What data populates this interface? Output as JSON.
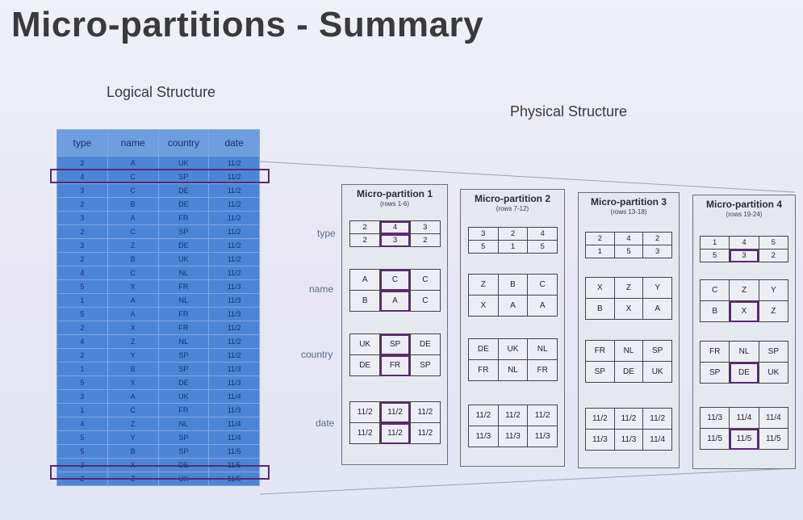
{
  "title": "Micro-partitions - Summary",
  "logical_label": "Logical Structure",
  "physical_label": "Physical Structure",
  "logical_table": {
    "headers": [
      "type",
      "name",
      "country",
      "date"
    ],
    "rows": [
      [
        "2",
        "A",
        "UK",
        "11/2"
      ],
      [
        "4",
        "C",
        "SP",
        "11/2"
      ],
      [
        "3",
        "C",
        "DE",
        "11/2"
      ],
      [
        "2",
        "B",
        "DE",
        "11/2"
      ],
      [
        "3",
        "A",
        "FR",
        "11/2"
      ],
      [
        "2",
        "C",
        "SP",
        "11/2"
      ],
      [
        "3",
        "Z",
        "DE",
        "11/2"
      ],
      [
        "2",
        "B",
        "UK",
        "11/2"
      ],
      [
        "4",
        "C",
        "NL",
        "11/2"
      ],
      [
        "5",
        "X",
        "FR",
        "11/3"
      ],
      [
        "1",
        "A",
        "NL",
        "11/3"
      ],
      [
        "5",
        "A",
        "FR",
        "11/3"
      ],
      [
        "2",
        "X",
        "FR",
        "11/2"
      ],
      [
        "4",
        "Z",
        "NL",
        "11/2"
      ],
      [
        "2",
        "Y",
        "SP",
        "11/2"
      ],
      [
        "1",
        "B",
        "SP",
        "11/3"
      ],
      [
        "5",
        "X",
        "DE",
        "11/3"
      ],
      [
        "3",
        "A",
        "UK",
        "11/4"
      ],
      [
        "1",
        "C",
        "FR",
        "11/3"
      ],
      [
        "4",
        "Z",
        "NL",
        "11/4"
      ],
      [
        "5",
        "Y",
        "SP",
        "11/4"
      ],
      [
        "5",
        "B",
        "SP",
        "11/5"
      ],
      [
        "3",
        "X",
        "DE",
        "11/5"
      ],
      [
        "2",
        "Z",
        "UK",
        "11/5"
      ]
    ]
  },
  "attribute_labels": [
    "type",
    "name",
    "country",
    "date"
  ],
  "partitions": [
    {
      "title": "Micro-partition 1",
      "rows": "(rows 1-6)",
      "type": [
        [
          "2",
          "4",
          "3"
        ],
        [
          "2",
          "3",
          "2"
        ]
      ],
      "name": [
        [
          "A",
          "C",
          "C"
        ],
        [
          "B",
          "A",
          "C"
        ]
      ],
      "country": [
        [
          "UK",
          "SP",
          "DE"
        ],
        [
          "DE",
          "FR",
          "SP"
        ]
      ],
      "date": [
        [
          "11/2",
          "11/2",
          "11/2"
        ],
        [
          "11/2",
          "11/2",
          "11/2"
        ]
      ]
    },
    {
      "title": "Micro-partition 2",
      "rows": "(rows 7-12)",
      "type": [
        [
          "3",
          "2",
          "4"
        ],
        [
          "5",
          "1",
          "5"
        ]
      ],
      "name": [
        [
          "Z",
          "B",
          "C"
        ],
        [
          "X",
          "A",
          "A"
        ]
      ],
      "country": [
        [
          "DE",
          "UK",
          "NL"
        ],
        [
          "FR",
          "NL",
          "FR"
        ]
      ],
      "date": [
        [
          "11/2",
          "11/2",
          "11/2"
        ],
        [
          "11/3",
          "11/3",
          "11/3"
        ]
      ]
    },
    {
      "title": "Micro-partition 3",
      "rows": "(rows 13-18)",
      "type": [
        [
          "2",
          "4",
          "2"
        ],
        [
          "1",
          "5",
          "3"
        ]
      ],
      "name": [
        [
          "X",
          "Z",
          "Y"
        ],
        [
          "B",
          "X",
          "A"
        ]
      ],
      "country": [
        [
          "FR",
          "NL",
          "SP"
        ],
        [
          "SP",
          "DE",
          "UK"
        ]
      ],
      "date": [
        [
          "11/2",
          "11/2",
          "11/2"
        ],
        [
          "11/3",
          "11/3",
          "11/4"
        ]
      ]
    },
    {
      "title": "Micro-partition 4",
      "rows": "(rows 19-24)",
      "type": [
        [
          "1",
          "4",
          "5"
        ],
        [
          "5",
          "3",
          "2"
        ]
      ],
      "name": [
        [
          "C",
          "Z",
          "Y"
        ],
        [
          "B",
          "X",
          "Z"
        ]
      ],
      "country": [
        [
          "FR",
          "NL",
          "SP"
        ],
        [
          "SP",
          "DE",
          "UK"
        ]
      ],
      "date": [
        [
          "11/3",
          "11/4",
          "11/4"
        ],
        [
          "11/5",
          "11/5",
          "11/5"
        ]
      ]
    }
  ]
}
